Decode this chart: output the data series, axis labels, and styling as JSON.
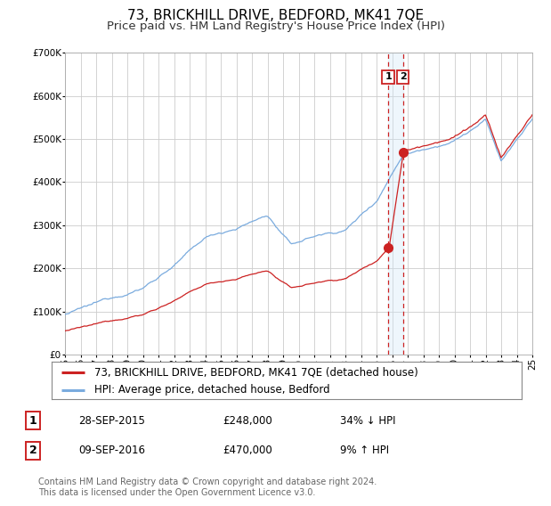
{
  "title": "73, BRICKHILL DRIVE, BEDFORD, MK41 7QE",
  "subtitle": "Price paid vs. HM Land Registry's House Price Index (HPI)",
  "ylim": [
    0,
    700000
  ],
  "hpi_color": "#7aabde",
  "price_color": "#cc2222",
  "transaction_color": "#cc2222",
  "shade_color": "#d0e8f8",
  "bg_color": "#ffffff",
  "grid_color": "#cccccc",
  "legend_label_red": "73, BRICKHILL DRIVE, BEDFORD, MK41 7QE (detached house)",
  "legend_label_blue": "HPI: Average price, detached house, Bedford",
  "transactions": [
    {
      "label": "1",
      "date": "28-SEP-2015",
      "price": 248000,
      "pct": "34%",
      "dir": "↓",
      "year": 2015.75
    },
    {
      "label": "2",
      "date": "09-SEP-2016",
      "price": 470000,
      "pct": "9%",
      "dir": "↑",
      "year": 2016.69
    }
  ],
  "footer": "Contains HM Land Registry data © Crown copyright and database right 2024.\nThis data is licensed under the Open Government Licence v3.0.",
  "start_year": 1995,
  "end_year": 2025,
  "title_fontsize": 11,
  "subtitle_fontsize": 9.5,
  "tick_fontsize": 7.5,
  "legend_fontsize": 8.5,
  "table_fontsize": 8.5,
  "footer_fontsize": 7
}
